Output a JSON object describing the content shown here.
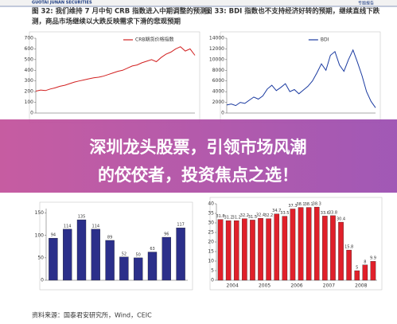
{
  "header": {
    "company": "GUOTAI JUNAN SECURITIES",
    "report": "专题报告"
  },
  "charts": [
    {
      "type": "line",
      "title": [
        "图 32: 我们维持 7 月中旬 CRB 指数进入中期调整的预测，",
        "测，商品市场继续以大跌反映需求下滑的悲观预期"
      ],
      "ylim": [
        0,
        700
      ],
      "yticks": [
        0,
        100,
        200,
        300,
        400,
        500,
        600,
        700
      ],
      "series": [
        {
          "name": "CRB期货价格指数",
          "color": "#d22020",
          "values": [
            205,
            215,
            210,
            225,
            235,
            250,
            260,
            275,
            290,
            300,
            310,
            320,
            330,
            335,
            345,
            360,
            375,
            390,
            400,
            420,
            440,
            450,
            470,
            485,
            500,
            480,
            520,
            550,
            570,
            600,
            620,
            580,
            600,
            540
          ]
        }
      ]
    },
    {
      "type": "line",
      "title": [
        "图 33: BDI 指数也不支持经济好转的预期，继续直线下跌"
      ],
      "ylim": [
        0,
        14000
      ],
      "yticks": [
        0,
        2000,
        4000,
        6000,
        8000,
        10000,
        12000,
        14000
      ],
      "series": [
        {
          "name": "BDI",
          "color": "#1a3aa0",
          "values": [
            1500,
            1700,
            1400,
            2000,
            1800,
            2400,
            3000,
            2600,
            3200,
            4500,
            5200,
            4200,
            4800,
            5500,
            4000,
            4400,
            3600,
            4300,
            5000,
            6000,
            7500,
            9200,
            8000,
            10800,
            11500,
            9000,
            7800,
            10000,
            11800,
            9500,
            7000,
            4000,
            2200,
            1000
          ]
        }
      ]
    },
    {
      "type": "bar",
      "ylim": [
        0,
        160
      ],
      "yticks": [
        0,
        50,
        100,
        150
      ],
      "series": [
        {
          "color": "#2b2f8a",
          "values": [
            94,
            114,
            135,
            114,
            89,
            52,
            50,
            63,
            96,
            117
          ]
        }
      ]
    },
    {
      "type": "bar",
      "ylim": [
        0,
        40
      ],
      "yticks": [
        0,
        5,
        10,
        15,
        20,
        25,
        30,
        35,
        40
      ],
      "xgroups": [
        "2004",
        "2005",
        "2006",
        "2007",
        "2008"
      ],
      "series": [
        {
          "color": "#e0202a",
          "values": [
            31.8,
            31.2,
            31.2,
            32.2,
            31.5,
            32.4,
            32.2,
            34.7,
            33.5,
            37.3,
            38.1,
            38.1,
            38.3,
            33.6,
            33.8,
            30.4,
            15.8,
            5.0,
            8.0,
            9.9
          ]
        }
      ]
    }
  ],
  "banner": {
    "lines": [
      "深圳龙头股票，引领市场风潮",
      "的佼佼者，投资焦点之选！"
    ]
  },
  "source": "资料来源：国泰君安研究所，Wind，CEIC"
}
